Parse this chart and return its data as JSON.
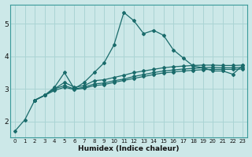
{
  "xlabel": "Humidex (Indice chaleur)",
  "ylabel": "",
  "background_color": "#cce8e8",
  "grid_color": "#aad4d4",
  "line_color": "#1a6b6b",
  "xlim": [
    -0.5,
    23.5
  ],
  "ylim": [
    1.5,
    5.6
  ],
  "xticks": [
    0,
    1,
    2,
    3,
    4,
    5,
    6,
    7,
    8,
    9,
    10,
    11,
    12,
    13,
    14,
    15,
    16,
    17,
    18,
    19,
    20,
    21,
    22,
    23
  ],
  "yticks": [
    2,
    3,
    4,
    5
  ],
  "series": {
    "line1_x": [
      0,
      1,
      2,
      3,
      4,
      5,
      6,
      7,
      8,
      9,
      10,
      11,
      12,
      13,
      14,
      15,
      16,
      17,
      18,
      19,
      20,
      21,
      22,
      23
    ],
    "line1_y": [
      1.7,
      2.05,
      2.65,
      2.8,
      3.05,
      3.5,
      3.0,
      3.2,
      3.5,
      3.8,
      4.35,
      5.35,
      5.1,
      4.7,
      4.8,
      4.65,
      4.2,
      3.95,
      3.7,
      3.65,
      3.55,
      3.55,
      3.45,
      3.72
    ],
    "line2_x": [
      2,
      3,
      4,
      5,
      6,
      7,
      8,
      9,
      10,
      11,
      12,
      13,
      14,
      15,
      16,
      17,
      18,
      19,
      20,
      21,
      22,
      23
    ],
    "line2_y": [
      2.65,
      2.8,
      3.0,
      3.2,
      3.05,
      3.1,
      3.25,
      3.28,
      3.35,
      3.42,
      3.5,
      3.55,
      3.6,
      3.65,
      3.68,
      3.7,
      3.72,
      3.73,
      3.73,
      3.72,
      3.72,
      3.73
    ],
    "line3_x": [
      2,
      3,
      4,
      5,
      6,
      7,
      8,
      9,
      10,
      11,
      12,
      13,
      14,
      15,
      16,
      17,
      18,
      19,
      20,
      21,
      22,
      23
    ],
    "line3_y": [
      2.65,
      2.8,
      3.0,
      3.1,
      3.0,
      3.05,
      3.15,
      3.18,
      3.25,
      3.3,
      3.38,
      3.44,
      3.5,
      3.55,
      3.58,
      3.61,
      3.63,
      3.65,
      3.66,
      3.65,
      3.65,
      3.66
    ],
    "line4_x": [
      2,
      3,
      4,
      5,
      6,
      7,
      8,
      9,
      10,
      11,
      12,
      13,
      14,
      15,
      16,
      17,
      18,
      19,
      20,
      21,
      22,
      23
    ],
    "line4_y": [
      2.65,
      2.8,
      2.95,
      3.05,
      2.98,
      3.02,
      3.1,
      3.13,
      3.2,
      3.26,
      3.32,
      3.38,
      3.44,
      3.49,
      3.52,
      3.55,
      3.57,
      3.59,
      3.6,
      3.6,
      3.6,
      3.61
    ]
  }
}
